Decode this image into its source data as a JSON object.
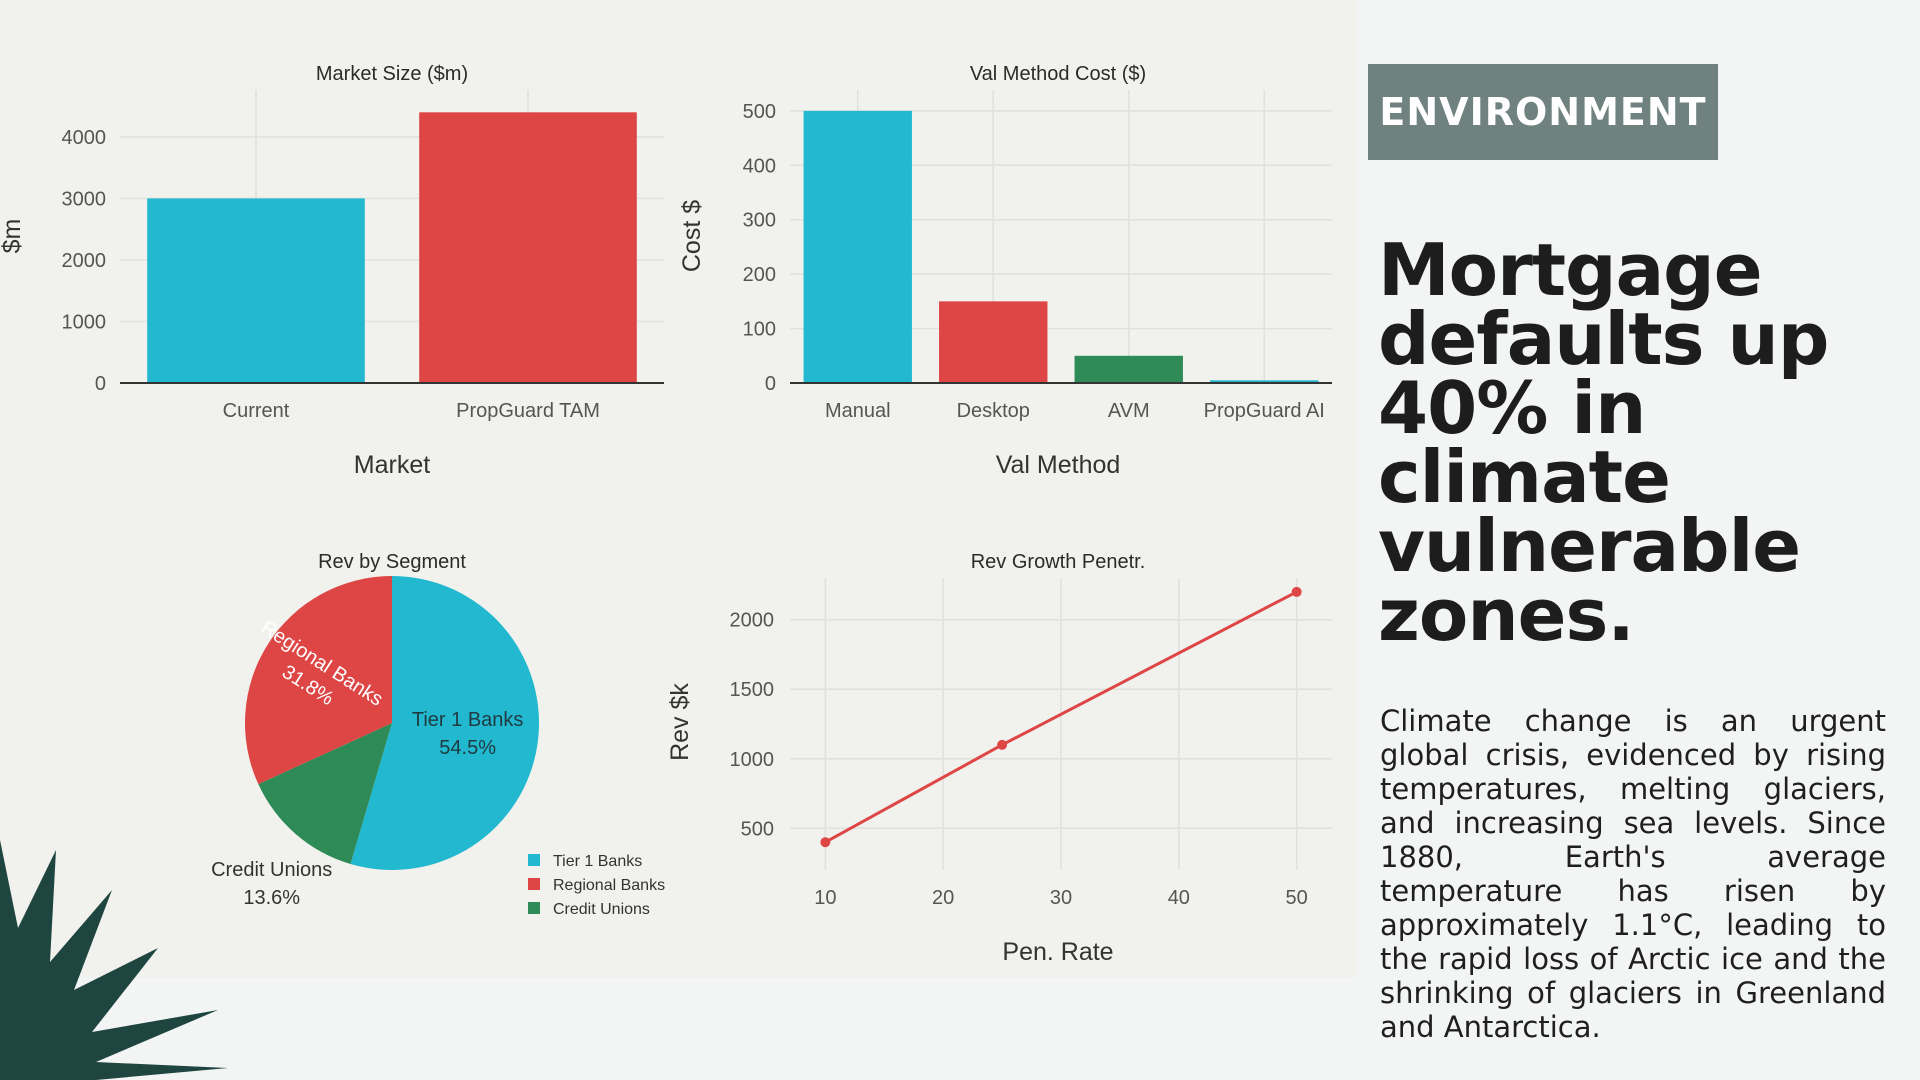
{
  "tag": "ENVIRONMENT",
  "headline": "Mortgage defaults up 40% in climate vulnerable zones.",
  "body": "Climate change is an urgent global crisis, evidenced by rising temperatures, melting glaciers, and increasing sea levels. Since 1880, Earth's average temperature has risen by approximately 1.1°C, leading to the rapid loss of Arctic ice and the shrinking of glaciers in Greenland and Antarctica.",
  "colors": {
    "teal": "#22b8cf",
    "red": "#de4646",
    "green": "#2e8b57",
    "tag_bg": "#6f8280",
    "spiky": "#1f4540"
  },
  "chart_data": [
    {
      "type": "bar",
      "title": "Market Size ($m)",
      "xlabel": "Market",
      "ylabel": "$m",
      "categories": [
        "Current",
        "PropGuard TAM"
      ],
      "values": [
        3000,
        4400
      ],
      "ylim": [
        0,
        4600
      ],
      "yticks": [
        0,
        1000,
        2000,
        3000,
        4000
      ],
      "bar_colors": [
        "#22b8cf",
        "#de4646"
      ]
    },
    {
      "type": "bar",
      "title": "Val Method Cost ($)",
      "xlabel": "Val Method",
      "ylabel": "Cost $",
      "categories": [
        "Manual",
        "Desktop",
        "AVM",
        "PropGuard AI"
      ],
      "values": [
        500,
        150,
        50,
        5
      ],
      "ylim": [
        0,
        520
      ],
      "yticks": [
        0,
        100,
        200,
        300,
        400,
        500
      ],
      "bar_colors": [
        "#22b8cf",
        "#de4646",
        "#2e8b57",
        "#22b8cf"
      ]
    },
    {
      "type": "pie",
      "title": "Rev by Segment",
      "slices": [
        {
          "label": "Tier 1 Banks",
          "pct_label": "54.5%",
          "value": 54.5,
          "color": "#22b8cf"
        },
        {
          "label": "Credit Unions",
          "pct_label": "13.6%",
          "value": 13.6,
          "color": "#2e8b57"
        },
        {
          "label": "Regional Banks",
          "pct_label": "31.8%",
          "value": 31.8,
          "color": "#de4646"
        }
      ],
      "legend": [
        "Tier 1 Banks",
        "Regional Banks",
        "Credit Unions"
      ],
      "legend_colors": [
        "#22b8cf",
        "#de4646",
        "#2e8b57"
      ],
      "legend_position": "bottom-right"
    },
    {
      "type": "line",
      "title": "Rev Growth Penetr.",
      "xlabel": "Pen. Rate",
      "ylabel": "Rev $k",
      "x": [
        10,
        25,
        50
      ],
      "y": [
        400,
        1100,
        2200
      ],
      "xlim": [
        7,
        53
      ],
      "ylim": [
        200,
        2300
      ],
      "xticks": [
        10,
        20,
        30,
        40,
        50
      ],
      "yticks": [
        500,
        1000,
        1500,
        2000
      ],
      "color": "#de4646"
    }
  ]
}
